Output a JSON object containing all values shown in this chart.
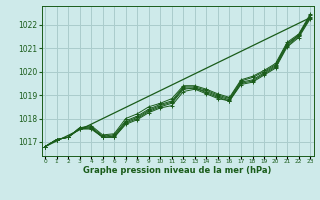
{
  "title": "Graphe pression niveau de la mer (hPa)",
  "bg_color": "#ceeaea",
  "grid_color": "#aacccc",
  "line_color": "#1a5c1a",
  "ylabel_ticks": [
    1017,
    1018,
    1019,
    1020,
    1021,
    1022
  ],
  "xlim": [
    -0.3,
    23.3
  ],
  "ylim": [
    1016.4,
    1022.8
  ],
  "straight_line": [
    1016.8,
    1022.3
  ],
  "series": [
    [
      1016.8,
      1017.1,
      1017.2,
      1017.55,
      1017.55,
      1017.2,
      1017.2,
      1017.75,
      1017.95,
      1018.25,
      1018.45,
      1018.55,
      1019.15,
      1019.25,
      1019.05,
      1018.85,
      1018.75,
      1019.45,
      1019.55,
      1019.85,
      1020.15,
      1021.05,
      1021.45,
      1022.25
    ],
    [
      1016.8,
      1017.1,
      1017.2,
      1017.55,
      1017.6,
      1017.2,
      1017.2,
      1017.8,
      1018.0,
      1018.3,
      1018.5,
      1018.65,
      1019.25,
      1019.3,
      1019.1,
      1018.9,
      1018.75,
      1019.5,
      1019.6,
      1019.9,
      1020.2,
      1021.1,
      1021.5,
      1022.3
    ],
    [
      1016.8,
      1017.1,
      1017.2,
      1017.6,
      1017.6,
      1017.2,
      1017.25,
      1017.85,
      1018.05,
      1018.35,
      1018.55,
      1018.7,
      1019.3,
      1019.3,
      1019.15,
      1018.95,
      1018.8,
      1019.55,
      1019.65,
      1019.95,
      1020.25,
      1021.15,
      1021.55,
      1022.35
    ],
    [
      1016.8,
      1017.1,
      1017.2,
      1017.6,
      1017.65,
      1017.25,
      1017.3,
      1017.9,
      1018.1,
      1018.4,
      1018.6,
      1018.75,
      1019.35,
      1019.35,
      1019.2,
      1019.0,
      1018.85,
      1019.6,
      1019.75,
      1020.0,
      1020.3,
      1021.2,
      1021.55,
      1022.4
    ],
    [
      1016.8,
      1017.1,
      1017.2,
      1017.6,
      1017.7,
      1017.3,
      1017.35,
      1018.0,
      1018.2,
      1018.5,
      1018.65,
      1018.85,
      1019.4,
      1019.4,
      1019.25,
      1019.05,
      1018.9,
      1019.65,
      1019.8,
      1020.05,
      1020.35,
      1021.25,
      1021.6,
      1022.45
    ]
  ]
}
